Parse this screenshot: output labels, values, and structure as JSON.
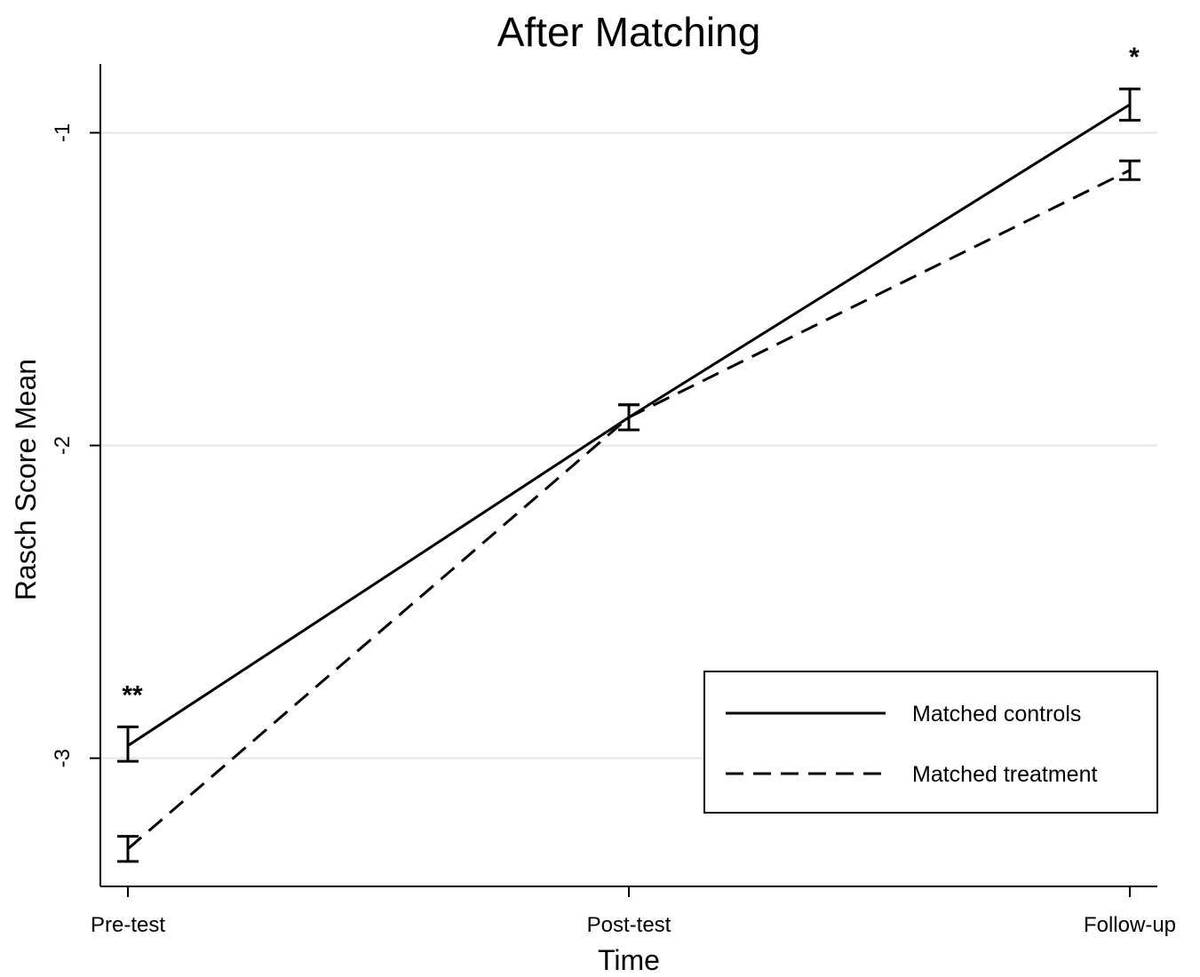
{
  "chart_data": {
    "type": "line",
    "title": "After Matching",
    "xlabel": "Time",
    "ylabel": "Rasch Score Mean",
    "categories": [
      "Pre-test",
      "Post-test",
      "Follow-up"
    ],
    "y_ticks": [
      -1,
      -2,
      -3
    ],
    "ylim": [
      -3.41,
      -0.78
    ],
    "grid": true,
    "legend_position": "bottom-right",
    "series": [
      {
        "name": "Matched controls",
        "style": "solid",
        "values": [
          -2.96,
          -1.91,
          -0.91
        ],
        "ci_low": [
          -3.01,
          -1.95,
          -0.96
        ],
        "ci_high": [
          -2.9,
          -1.87,
          -0.86
        ]
      },
      {
        "name": "Matched treatment",
        "style": "dashed",
        "values": [
          -3.29,
          -1.91,
          -1.12
        ],
        "ci_low": [
          -3.33,
          -1.95,
          -1.15
        ],
        "ci_high": [
          -3.25,
          -1.87,
          -1.09
        ]
      }
    ],
    "annotations": [
      {
        "category": "Pre-test",
        "text": "**"
      },
      {
        "category": "Follow-up",
        "text": "*"
      }
    ],
    "colors": {
      "line": "#000000",
      "grid": "#e6e6e6",
      "background": "#ffffff"
    }
  }
}
